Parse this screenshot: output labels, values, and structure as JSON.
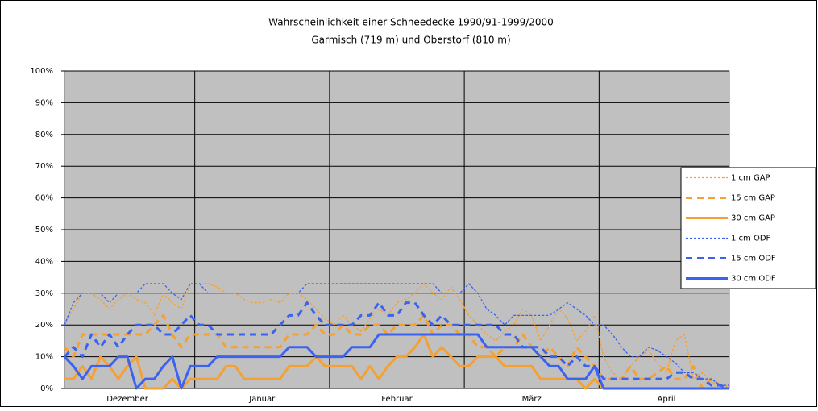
{
  "chart_data": {
    "type": "line",
    "title": "Wahrscheinlichkeit einer Schneedecke 1990/91-1999/2000",
    "subtitle": "Garmisch (719 m) und Oberstorf (810 m)",
    "categories": [
      null,
      null,
      null,
      null,
      null,
      null,
      null,
      "Dezember",
      null,
      null,
      null,
      null,
      null,
      null,
      null,
      null,
      null,
      null,
      null,
      null,
      null,
      null,
      "Januar",
      null,
      null,
      null,
      null,
      null,
      null,
      null,
      null,
      null,
      null,
      null,
      null,
      null,
      null,
      "Februar",
      null,
      null,
      null,
      null,
      null,
      null,
      null,
      null,
      null,
      null,
      null,
      null,
      null,
      null,
      "März",
      null,
      null,
      null,
      null,
      null,
      null,
      null,
      null,
      null,
      null,
      null,
      null,
      null,
      null,
      "April",
      null,
      null,
      null,
      null,
      null,
      null,
      null
    ],
    "ylim": [
      0,
      100
    ],
    "yticks": [
      {
        "value": 0,
        "label": "0%"
      },
      {
        "value": 10,
        "label": "10%"
      },
      {
        "value": 20,
        "label": "20%"
      },
      {
        "value": 30,
        "label": "30%"
      },
      {
        "value": 40,
        "label": "40%"
      },
      {
        "value": 50,
        "label": "50%"
      },
      {
        "value": 60,
        "label": "60%"
      },
      {
        "value": 70,
        "label": "70%"
      },
      {
        "value": 80,
        "label": "80%"
      },
      {
        "value": 90,
        "label": "90%"
      },
      {
        "value": 100,
        "label": "100%"
      }
    ],
    "grid": true,
    "legend": "right",
    "series": [
      {
        "name": "1 cm GAP",
        "color": "#f5a030",
        "style": "dotted",
        "values": [
          20,
          25,
          30,
          30,
          28,
          25,
          28,
          30,
          28,
          27,
          23,
          30,
          27,
          25,
          33,
          33,
          33,
          32,
          30,
          30,
          28,
          27,
          27,
          28,
          27,
          30,
          30,
          28,
          25,
          22,
          20,
          23,
          20,
          18,
          22,
          25,
          23,
          27,
          28,
          30,
          33,
          30,
          28,
          32,
          28,
          23,
          20,
          17,
          15,
          18,
          20,
          25,
          23,
          15,
          20,
          25,
          22,
          15,
          18,
          23,
          10,
          5,
          3,
          7,
          10,
          12,
          8,
          5,
          15,
          17,
          3,
          5,
          2,
          1,
          1
        ]
      },
      {
        "name": "15 cm GAP",
        "color": "#f5a030",
        "style": "dashed",
        "values": [
          13,
          10,
          17,
          17,
          17,
          17,
          17,
          17,
          17,
          17,
          20,
          23,
          17,
          13,
          17,
          17,
          17,
          17,
          13,
          13,
          13,
          13,
          13,
          13,
          13,
          17,
          17,
          17,
          20,
          17,
          17,
          20,
          17,
          17,
          20,
          20,
          17,
          20,
          20,
          20,
          23,
          17,
          20,
          20,
          17,
          17,
          13,
          13,
          10,
          13,
          13,
          17,
          13,
          10,
          13,
          10,
          7,
          13,
          10,
          7,
          3,
          3,
          3,
          7,
          3,
          3,
          5,
          7,
          3,
          3,
          7,
          0,
          3,
          1,
          0
        ]
      },
      {
        "name": "30 cm GAP",
        "color": "#f5a030",
        "style": "solid",
        "values": [
          3,
          3,
          7,
          3,
          10,
          7,
          3,
          7,
          10,
          0,
          0,
          0,
          3,
          0,
          3,
          3,
          3,
          3,
          7,
          7,
          3,
          3,
          3,
          3,
          3,
          7,
          7,
          7,
          10,
          7,
          7,
          7,
          7,
          3,
          7,
          3,
          7,
          10,
          10,
          13,
          17,
          10,
          13,
          10,
          7,
          7,
          10,
          10,
          10,
          7,
          7,
          7,
          7,
          3,
          3,
          3,
          3,
          3,
          0,
          3,
          0,
          0,
          0,
          0,
          0,
          0,
          0,
          0,
          0,
          0,
          0,
          0,
          0,
          0,
          0
        ]
      },
      {
        "name": "1 cm ODF",
        "color": "#3b63f0",
        "style": "dotted",
        "values": [
          20,
          27,
          30,
          30,
          30,
          27,
          30,
          30,
          30,
          33,
          33,
          33,
          30,
          28,
          33,
          33,
          30,
          30,
          30,
          30,
          30,
          30,
          30,
          30,
          30,
          30,
          30,
          33,
          33,
          33,
          33,
          33,
          33,
          33,
          33,
          33,
          33,
          33,
          33,
          33,
          33,
          33,
          30,
          30,
          30,
          33,
          30,
          25,
          23,
          20,
          23,
          23,
          23,
          23,
          23,
          25,
          27,
          25,
          23,
          20,
          20,
          17,
          13,
          10,
          10,
          13,
          12,
          10,
          8,
          5,
          5,
          3,
          3,
          1,
          1
        ]
      },
      {
        "name": "15 cm ODF",
        "color": "#3b63f0",
        "style": "dashed",
        "values": [
          10,
          13,
          10,
          17,
          13,
          17,
          13,
          17,
          20,
          20,
          20,
          17,
          17,
          20,
          23,
          20,
          20,
          17,
          17,
          17,
          17,
          17,
          17,
          17,
          20,
          23,
          23,
          27,
          23,
          20,
          20,
          20,
          20,
          23,
          23,
          27,
          23,
          23,
          27,
          27,
          23,
          20,
          23,
          20,
          20,
          20,
          20,
          20,
          20,
          17,
          17,
          13,
          13,
          13,
          10,
          10,
          7,
          10,
          7,
          7,
          3,
          3,
          3,
          3,
          3,
          3,
          3,
          3,
          5,
          5,
          3,
          3,
          1,
          1,
          0
        ]
      },
      {
        "name": "30 cm ODF",
        "color": "#3b63f0",
        "style": "solid",
        "values": [
          10,
          7,
          3,
          7,
          7,
          7,
          10,
          10,
          0,
          3,
          3,
          7,
          10,
          0,
          7,
          7,
          7,
          10,
          10,
          10,
          10,
          10,
          10,
          10,
          10,
          13,
          13,
          13,
          10,
          10,
          10,
          10,
          13,
          13,
          13,
          17,
          17,
          17,
          17,
          17,
          17,
          17,
          17,
          17,
          17,
          17,
          17,
          13,
          13,
          13,
          13,
          13,
          13,
          10,
          7,
          7,
          3,
          3,
          3,
          7,
          0,
          0,
          0,
          0,
          0,
          0,
          0,
          0,
          0,
          0,
          0,
          0,
          0,
          0,
          0
        ]
      }
    ]
  }
}
